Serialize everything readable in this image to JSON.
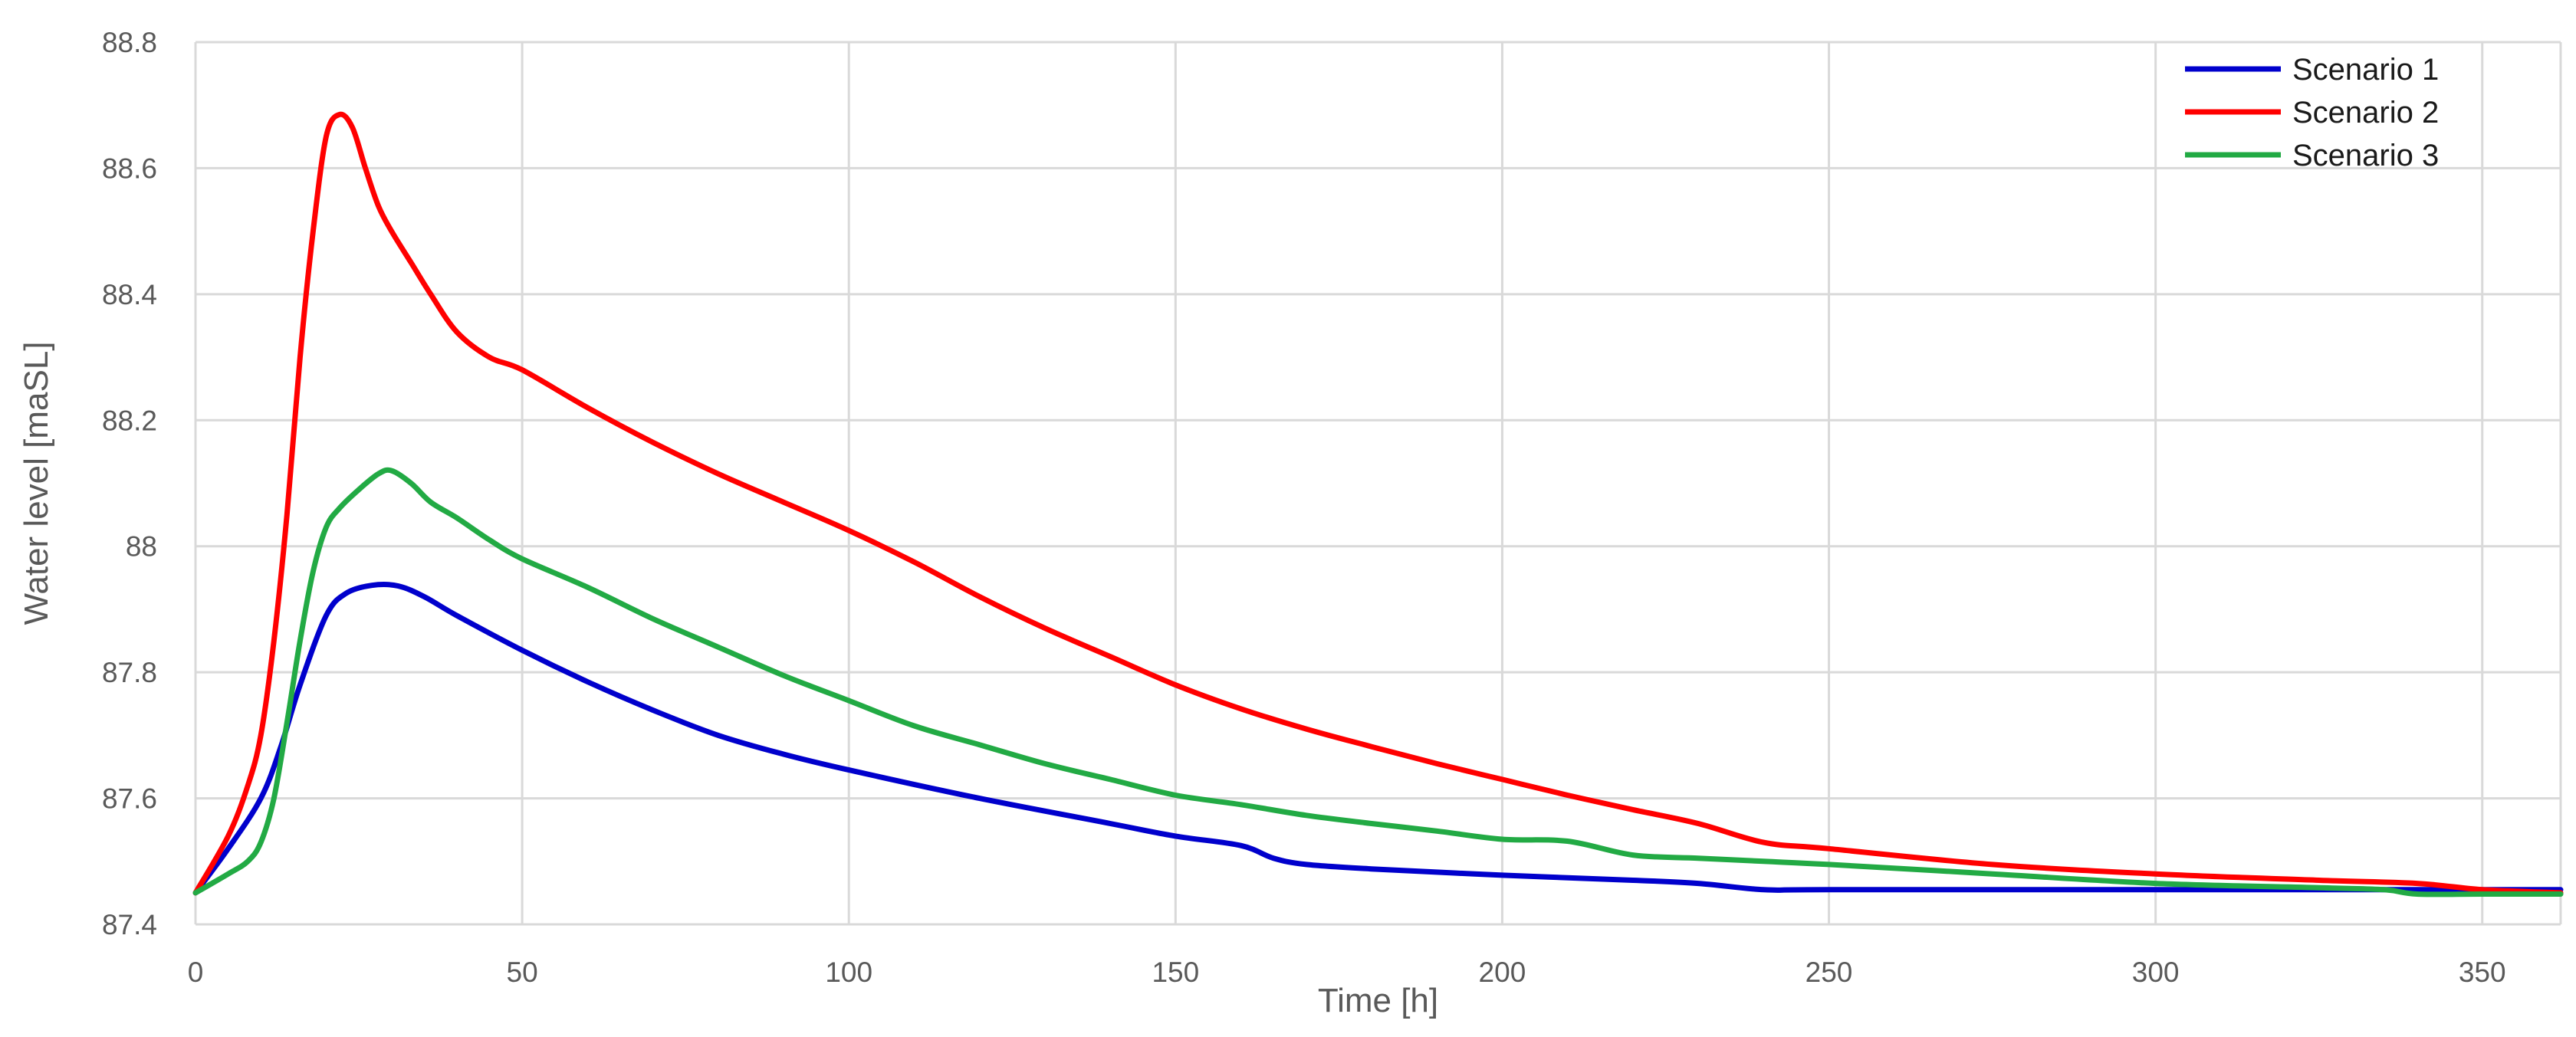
{
  "chart_data": {
    "type": "line",
    "title": "",
    "xlabel": "Time [h]",
    "ylabel": "Water level [maSL]",
    "xlim": [
      0,
      362
    ],
    "ylim": [
      87.4,
      88.8
    ],
    "xticks": [
      0,
      50,
      100,
      150,
      200,
      250,
      300,
      350
    ],
    "yticks": [
      87.4,
      87.6,
      87.8,
      88,
      88.2,
      88.4,
      88.6,
      88.8
    ],
    "ytick_labels": [
      "87.4",
      "87.6",
      "87.8",
      "88",
      "88.2",
      "88.4",
      "88.6",
      "88.8"
    ],
    "grid": true,
    "legend_position": "top-right",
    "series": [
      {
        "name": "Scenario 1",
        "color": "#0000cc",
        "x": [
          0,
          5,
          10,
          13,
          16,
          20,
          23,
          27,
          31,
          35,
          40,
          50,
          60,
          70,
          80,
          90,
          100,
          120,
          140,
          150,
          160,
          165,
          170,
          180,
          200,
          220,
          230,
          240,
          250,
          300,
          350,
          362
        ],
        "y": [
          87.45,
          87.52,
          87.6,
          87.68,
          87.78,
          87.89,
          87.925,
          87.938,
          87.937,
          87.92,
          87.89,
          87.835,
          87.785,
          87.74,
          87.7,
          87.67,
          87.645,
          87.6,
          87.56,
          87.54,
          87.525,
          87.505,
          87.495,
          87.488,
          87.478,
          87.47,
          87.465,
          87.455,
          87.455,
          87.455,
          87.455,
          87.455
        ]
      },
      {
        "name": "Scenario 2",
        "color": "#ff0000",
        "x": [
          0,
          5,
          8,
          10,
          12,
          14,
          16,
          18,
          20,
          22,
          24,
          26,
          28,
          30,
          33,
          36,
          40,
          45,
          50,
          60,
          70,
          80,
          90,
          100,
          110,
          120,
          130,
          140,
          150,
          160,
          170,
          180,
          190,
          200,
          210,
          220,
          230,
          240,
          250,
          275,
          300,
          325,
          340,
          350,
          362
        ],
        "y": [
          87.45,
          87.54,
          87.62,
          87.7,
          87.85,
          88.05,
          88.3,
          88.5,
          88.65,
          88.685,
          88.665,
          88.6,
          88.54,
          88.5,
          88.45,
          88.4,
          88.34,
          88.3,
          88.28,
          88.22,
          88.165,
          88.115,
          88.07,
          88.025,
          87.975,
          87.92,
          87.87,
          87.825,
          87.78,
          87.742,
          87.71,
          87.682,
          87.655,
          87.63,
          87.605,
          87.582,
          87.56,
          87.53,
          87.52,
          87.495,
          87.48,
          87.47,
          87.465,
          87.455,
          87.45
        ]
      },
      {
        "name": "Scenario 3",
        "color": "#22aa44",
        "x": [
          0,
          5,
          8,
          10,
          12,
          14,
          16,
          18,
          20,
          22,
          25,
          28,
          30,
          33,
          36,
          40,
          45,
          50,
          60,
          70,
          80,
          90,
          100,
          110,
          120,
          130,
          140,
          150,
          160,
          170,
          180,
          190,
          200,
          210,
          220,
          230,
          240,
          250,
          275,
          300,
          325,
          335,
          340,
          350,
          362
        ],
        "y": [
          87.45,
          87.48,
          87.5,
          87.53,
          87.6,
          87.72,
          87.85,
          87.96,
          88.03,
          88.06,
          88.09,
          88.115,
          88.12,
          88.1,
          88.07,
          88.045,
          88.01,
          87.98,
          87.935,
          87.885,
          87.84,
          87.795,
          87.755,
          87.715,
          87.685,
          87.655,
          87.63,
          87.605,
          87.59,
          87.573,
          87.56,
          87.548,
          87.535,
          87.532,
          87.51,
          87.505,
          87.5,
          87.495,
          87.48,
          87.465,
          87.458,
          87.455,
          87.448,
          87.448,
          87.448
        ]
      }
    ]
  }
}
